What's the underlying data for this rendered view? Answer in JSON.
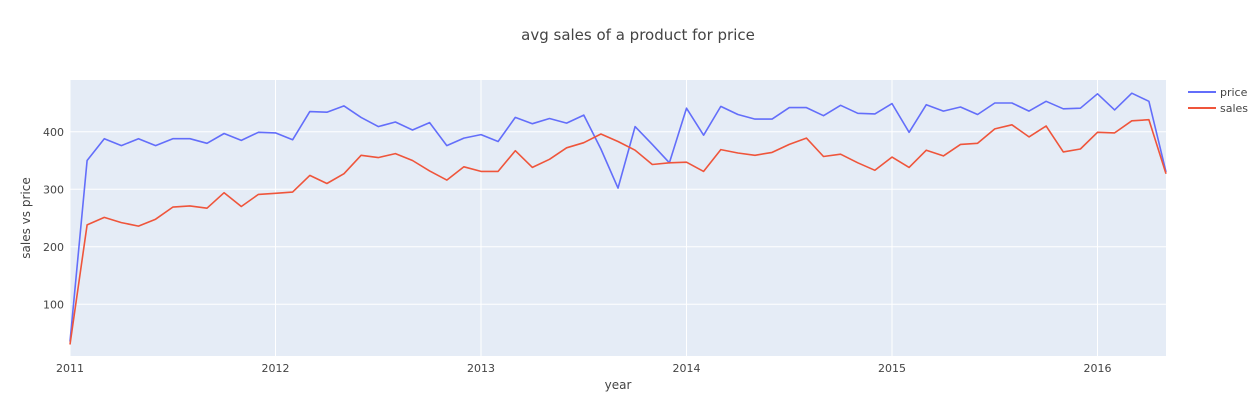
{
  "chart_data": {
    "type": "line",
    "title": "avg sales of a product for price",
    "xlabel": "year",
    "ylabel": "sales vs price",
    "x_start": "2011-01",
    "x_end": "2016-05",
    "x_ticks": [
      2011,
      2012,
      2013,
      2014,
      2015,
      2016
    ],
    "y_ticks": [
      100,
      200,
      300,
      400
    ],
    "ylim": [
      10,
      490
    ],
    "grid": true,
    "legend_position": "top-right",
    "series": [
      {
        "name": "price",
        "color": "#636efa",
        "values": [
          35,
          350,
          388,
          376,
          388,
          376,
          388,
          388,
          380,
          397,
          385,
          399,
          398,
          386,
          435,
          434,
          445,
          425,
          409,
          417,
          403,
          416,
          376,
          389,
          395,
          383,
          425,
          414,
          423,
          415,
          429,
          370,
          302,
          409,
          378,
          346,
          441,
          394,
          444,
          430,
          422,
          422,
          442,
          442,
          428,
          446,
          432,
          431,
          449,
          399,
          447,
          436,
          443,
          430,
          450,
          450,
          436,
          453,
          440,
          441,
          466,
          438,
          467,
          453,
          330
        ]
      },
      {
        "name": "sales",
        "color": "#ef553b",
        "values": [
          30,
          238,
          251,
          242,
          236,
          248,
          269,
          271,
          267,
          294,
          270,
          291,
          293,
          295,
          324,
          310,
          327,
          359,
          355,
          362,
          350,
          332,
          316,
          339,
          331,
          331,
          367,
          338,
          352,
          372,
          381,
          396,
          383,
          368,
          343,
          346,
          347,
          331,
          369,
          363,
          359,
          364,
          378,
          389,
          357,
          361,
          346,
          333,
          356,
          338,
          368,
          358,
          378,
          380,
          405,
          412,
          391,
          410,
          365,
          370,
          399,
          398,
          419,
          421,
          327
        ]
      }
    ]
  }
}
